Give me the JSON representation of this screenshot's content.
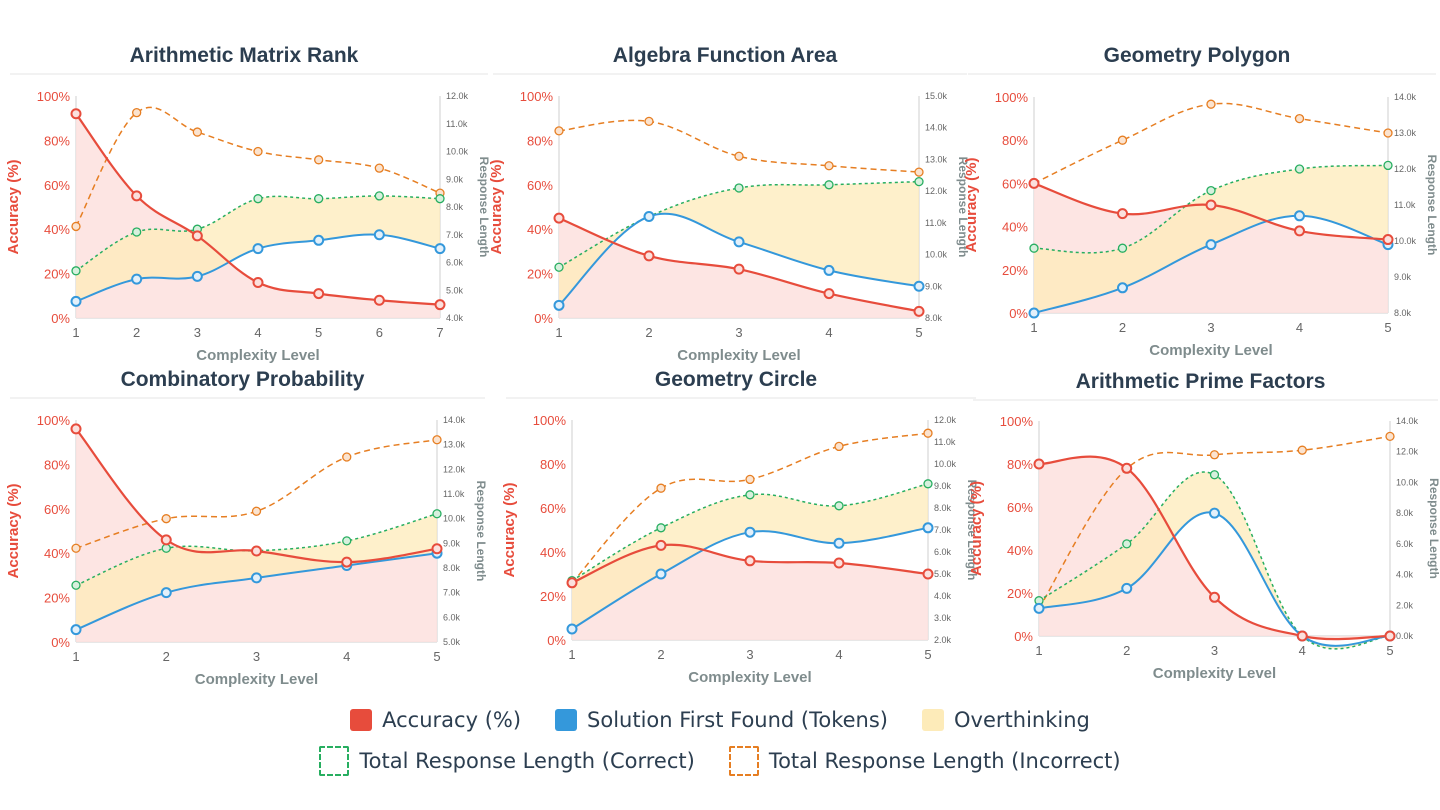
{
  "colors": {
    "accuracy": "#e74c3c",
    "solution": "#3498db",
    "correct": "#27ae60",
    "incorrect": "#e67e22",
    "overthinking": "#fdebb9",
    "accuracy_fill": "#fde0de",
    "text": "#2c3e50",
    "axis_gray": "#777777"
  },
  "legend": {
    "accuracy": "Accuracy (%)",
    "solution": "Solution First Found (Tokens)",
    "overthinking": "Overthinking",
    "correct": "Total Response Length (Correct)",
    "incorrect": "Total Response Length (Incorrect)"
  },
  "chart_data": [
    {
      "type": "line",
      "title": "Arithmetic Matrix Rank",
      "xlabel": "Complexity Level",
      "ylabel_left": "Accuracy (%)",
      "ylabel_right": "Response Length",
      "x": [
        1,
        2,
        3,
        4,
        5,
        6,
        7
      ],
      "left_ticks": [
        "0%",
        "20%",
        "40%",
        "60%",
        "80%",
        "100%"
      ],
      "right_ticks": [
        "4.0k",
        "5.0k",
        "6.0k",
        "7.0k",
        "8.0k",
        "9.0k",
        "10.0k",
        "11.0k",
        "12.0k"
      ],
      "ylim_left": [
        0,
        100
      ],
      "ylim_right": [
        4000,
        12000
      ],
      "accuracy": [
        92,
        55,
        37,
        16,
        11,
        8,
        6
      ],
      "solution_first_found": [
        4600,
        5400,
        5500,
        6500,
        6800,
        7000,
        6500
      ],
      "total_correct": [
        5700,
        7100,
        7200,
        8300,
        8300,
        8400,
        8300
      ],
      "total_incorrect": [
        7300,
        11400,
        10700,
        10000,
        9700,
        9400,
        8500
      ]
    },
    {
      "type": "line",
      "title": "Algebra Function Area",
      "xlabel": "Complexity Level",
      "ylabel_left": "Accuracy (%)",
      "ylabel_right": "Response Length",
      "x": [
        1,
        2,
        3,
        4,
        5
      ],
      "left_ticks": [
        "0%",
        "20%",
        "40%",
        "60%",
        "80%",
        "100%"
      ],
      "right_ticks": [
        "8.0k",
        "9.0k",
        "10.0k",
        "11.0k",
        "12.0k",
        "13.0k",
        "14.0k",
        "15.0k"
      ],
      "ylim_left": [
        0,
        100
      ],
      "ylim_right": [
        8000,
        15000
      ],
      "accuracy": [
        45,
        28,
        22,
        11,
        3
      ],
      "solution_first_found": [
        8400,
        11200,
        10400,
        9500,
        9000
      ],
      "total_correct": [
        9600,
        11200,
        12100,
        12200,
        12300
      ],
      "total_incorrect": [
        13900,
        14200,
        13100,
        12800,
        12600
      ]
    },
    {
      "type": "line",
      "title": "Geometry Polygon",
      "xlabel": "Complexity Level",
      "ylabel_left": "Accuracy (%)",
      "ylabel_right": "Response Length",
      "x": [
        1,
        2,
        3,
        4,
        5
      ],
      "left_ticks": [
        "0%",
        "20%",
        "40%",
        "60%",
        "80%",
        "100%"
      ],
      "right_ticks": [
        "8.0k",
        "9.0k",
        "10.0k",
        "11.0k",
        "12.0k",
        "13.0k",
        "14.0k"
      ],
      "ylim_left": [
        0,
        100
      ],
      "ylim_right": [
        8000,
        14000
      ],
      "accuracy": [
        60,
        46,
        50,
        38,
        34
      ],
      "solution_first_found": [
        8000,
        8700,
        9900,
        10700,
        9900
      ],
      "total_correct": [
        9800,
        9800,
        11400,
        12000,
        12100
      ],
      "total_incorrect": [
        11600,
        12800,
        13800,
        13400,
        13000
      ]
    },
    {
      "type": "line",
      "title": "Combinatory Probability",
      "xlabel": "Complexity Level",
      "ylabel_left": "Accuracy (%)",
      "ylabel_right": "Response Length",
      "x": [
        1,
        2,
        3,
        4,
        5
      ],
      "left_ticks": [
        "0%",
        "20%",
        "40%",
        "60%",
        "80%",
        "100%"
      ],
      "right_ticks": [
        "5.0k",
        "6.0k",
        "7.0k",
        "8.0k",
        "9.0k",
        "10.0k",
        "11.0k",
        "12.0k",
        "13.0k",
        "14.0k"
      ],
      "ylim_left": [
        0,
        100
      ],
      "ylim_right": [
        5000,
        14000
      ],
      "accuracy": [
        96,
        46,
        41,
        36,
        42
      ],
      "solution_first_found": [
        5500,
        7000,
        7600,
        8100,
        8600
      ],
      "total_correct": [
        7300,
        8800,
        8700,
        9100,
        10200
      ],
      "total_incorrect": [
        8800,
        10000,
        10300,
        12500,
        13200
      ]
    },
    {
      "type": "line",
      "title": "Geometry Circle",
      "xlabel": "Complexity Level",
      "ylabel_left": "Accuracy (%)",
      "ylabel_right": "Response Length",
      "x": [
        1,
        2,
        3,
        4,
        5
      ],
      "left_ticks": [
        "0%",
        "20%",
        "40%",
        "60%",
        "80%",
        "100%"
      ],
      "right_ticks": [
        "2.0k",
        "3.0k",
        "4.0k",
        "5.0k",
        "6.0k",
        "7.0k",
        "8.0k",
        "9.0k",
        "10.0k",
        "11.0k",
        "12.0k"
      ],
      "ylim_left": [
        0,
        100
      ],
      "ylim_right": [
        2000,
        12000
      ],
      "accuracy": [
        26,
        43,
        36,
        35,
        30
      ],
      "solution_first_found": [
        2500,
        5000,
        6900,
        6400,
        7100
      ],
      "total_correct": [
        4700,
        7100,
        8600,
        8100,
        9100
      ],
      "total_incorrect": [
        4600,
        8900,
        9300,
        10800,
        11400
      ]
    },
    {
      "type": "line",
      "title": "Arithmetic Prime Factors",
      "xlabel": "Complexity Level",
      "ylabel_left": "Accuracy (%)",
      "ylabel_right": "Response Length",
      "x": [
        1,
        2,
        3,
        4,
        5
      ],
      "left_ticks": [
        "0%",
        "20%",
        "40%",
        "60%",
        "80%",
        "100%"
      ],
      "right_ticks": [
        "0.0k",
        "2.0k",
        "4.0k",
        "6.0k",
        "8.0k",
        "10.0k",
        "12.0k",
        "14.0k"
      ],
      "ylim_left": [
        0,
        100
      ],
      "ylim_right": [
        0,
        14000
      ],
      "accuracy": [
        80,
        78,
        18,
        0,
        0
      ],
      "solution_first_found": [
        1800,
        3100,
        8000,
        0,
        0
      ],
      "total_correct": [
        2300,
        6000,
        10500,
        0,
        0
      ],
      "total_incorrect": [
        1800,
        10900,
        11800,
        12100,
        13000
      ]
    }
  ]
}
